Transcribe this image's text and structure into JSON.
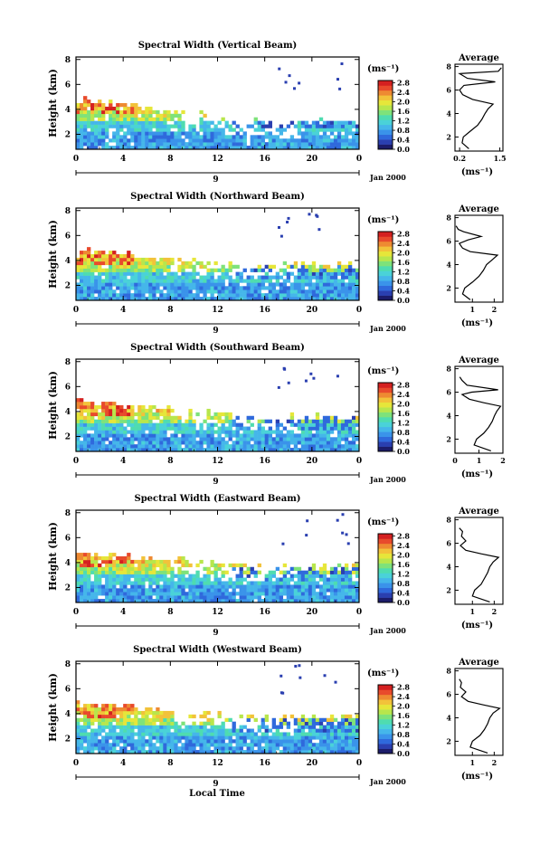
{
  "x_axis_label": "Local Time",
  "date_label": "Jan 2000",
  "day_marker": "9",
  "colorbar_unit": "(ms⁻¹)",
  "average_unit": "(ms⁻¹)",
  "average_title": "Average",
  "colormap": [
    "#1c1c6a",
    "#2a3fb0",
    "#2f69dc",
    "#3a93ea",
    "#45b6ea",
    "#4ad2d8",
    "#4fdcb0",
    "#7ee27a",
    "#b8e64c",
    "#e6e63a",
    "#f2c23a",
    "#ee8a32",
    "#e84a2c",
    "#d42020"
  ],
  "chart_data": [
    {
      "type": "heatmap",
      "title": "Spectral Width (Vertical Beam)",
      "xlabel": "",
      "ylabel": "Height (km)",
      "x_ticks": [
        "0",
        "4",
        "8",
        "12",
        "16",
        "20",
        "0"
      ],
      "y_ticks": [
        "2",
        "4",
        "6",
        "8"
      ],
      "xlim": [
        0,
        24
      ],
      "ylim": [
        0.8,
        8.2
      ],
      "colorbar": {
        "ticks": [
          "0.0",
          "0.4",
          "0.8",
          "1.2",
          "1.6",
          "2.0",
          "2.4",
          "2.8"
        ],
        "range": [
          0,
          2.9
        ]
      },
      "average": {
        "x_ticks": [
          "0.2",
          "1.5"
        ],
        "xlim": [
          0.05,
          1.6
        ],
        "y_ticks": [
          "2",
          "4",
          "6",
          "8"
        ],
        "profile": [
          [
            0.5,
            1.0
          ],
          [
            0.28,
            1.5
          ],
          [
            0.32,
            2.0
          ],
          [
            0.55,
            2.5
          ],
          [
            0.78,
            3.0
          ],
          [
            0.92,
            3.5
          ],
          [
            1.02,
            4.0
          ],
          [
            1.12,
            4.4
          ],
          [
            1.28,
            4.8
          ],
          [
            0.62,
            5.2
          ],
          [
            0.3,
            5.6
          ],
          [
            0.2,
            6.0
          ],
          [
            0.34,
            6.4
          ],
          [
            1.35,
            6.7
          ],
          [
            0.45,
            7.0
          ],
          [
            0.2,
            7.4
          ],
          [
            1.45,
            7.6
          ],
          [
            1.55,
            7.9
          ]
        ]
      },
      "gen": {
        "seed": 11,
        "top_start": 4.8,
        "top_end": 3.0,
        "gap": 6
      }
    },
    {
      "type": "heatmap",
      "title": "Spectral Width (Northward Beam)",
      "xlabel": "",
      "ylabel": "Height (km)",
      "x_ticks": [
        "0",
        "4",
        "8",
        "12",
        "16",
        "20",
        "0"
      ],
      "y_ticks": [
        "2",
        "4",
        "6",
        "8"
      ],
      "xlim": [
        0,
        24
      ],
      "ylim": [
        0.8,
        8.2
      ],
      "colorbar": {
        "ticks": [
          "0.0",
          "0.4",
          "0.8",
          "1.2",
          "1.6",
          "2.0",
          "2.4",
          "2.8"
        ],
        "range": [
          0,
          2.9
        ]
      },
      "average": {
        "x_ticks": [
          "1",
          "2"
        ],
        "xlim": [
          0.2,
          2.4
        ],
        "y_ticks": [
          "2",
          "4",
          "6",
          "8"
        ],
        "profile": [
          [
            0.9,
            1.0
          ],
          [
            0.55,
            1.5
          ],
          [
            0.65,
            2.0
          ],
          [
            1.0,
            2.5
          ],
          [
            1.3,
            3.0
          ],
          [
            1.5,
            3.5
          ],
          [
            1.65,
            4.0
          ],
          [
            1.9,
            4.4
          ],
          [
            2.15,
            4.8
          ],
          [
            0.9,
            5.1
          ],
          [
            0.55,
            5.4
          ],
          [
            0.4,
            5.8
          ],
          [
            0.8,
            6.1
          ],
          [
            1.4,
            6.4
          ],
          [
            0.6,
            6.8
          ],
          [
            0.35,
            7.0
          ],
          [
            0.25,
            7.3
          ]
        ]
      },
      "gen": {
        "seed": 23,
        "top_start": 4.8,
        "top_end": 3.6,
        "gap": 6
      }
    },
    {
      "type": "heatmap",
      "title": "Spectral Width (Southward Beam)",
      "xlabel": "",
      "ylabel": "Height (km)",
      "x_ticks": [
        "0",
        "4",
        "8",
        "12",
        "16",
        "20",
        "0"
      ],
      "y_ticks": [
        "2",
        "4",
        "6",
        "8"
      ],
      "xlim": [
        0,
        24
      ],
      "ylim": [
        0.8,
        8.2
      ],
      "colorbar": {
        "ticks": [
          "0.0",
          "0.4",
          "0.8",
          "1.2",
          "1.6",
          "2.0",
          "2.4",
          "2.8"
        ],
        "range": [
          0,
          2.9
        ]
      },
      "average": {
        "x_ticks": [
          "0",
          "1",
          "2"
        ],
        "xlim": [
          0,
          2.0
        ],
        "y_ticks": [
          "2",
          "4",
          "6",
          "8"
        ],
        "profile": [
          [
            1.5,
            1.0
          ],
          [
            0.8,
            1.5
          ],
          [
            0.9,
            2.0
          ],
          [
            1.2,
            2.5
          ],
          [
            1.4,
            3.0
          ],
          [
            1.55,
            3.5
          ],
          [
            1.65,
            4.0
          ],
          [
            1.75,
            4.4
          ],
          [
            1.9,
            4.8
          ],
          [
            1.2,
            5.1
          ],
          [
            0.6,
            5.4
          ],
          [
            0.3,
            5.8
          ],
          [
            0.7,
            6.0
          ],
          [
            1.8,
            6.2
          ],
          [
            0.5,
            6.6
          ],
          [
            0.3,
            7.0
          ],
          [
            0.2,
            7.3
          ]
        ]
      },
      "gen": {
        "seed": 37,
        "top_start": 4.9,
        "top_end": 3.6,
        "gap": 5
      }
    },
    {
      "type": "heatmap",
      "title": "Spectral Width (Eastward Beam)",
      "xlabel": "",
      "ylabel": "Height (km)",
      "x_ticks": [
        "0",
        "4",
        "8",
        "12",
        "16",
        "20",
        "0"
      ],
      "y_ticks": [
        "2",
        "4",
        "6",
        "8"
      ],
      "xlim": [
        0,
        24
      ],
      "ylim": [
        0.8,
        8.2
      ],
      "colorbar": {
        "ticks": [
          "0.0",
          "0.4",
          "0.8",
          "1.2",
          "1.6",
          "2.0",
          "2.4",
          "2.8"
        ],
        "range": [
          0,
          2.9
        ]
      },
      "average": {
        "x_ticks": [
          "1",
          "2"
        ],
        "xlim": [
          0.2,
          2.4
        ],
        "y_ticks": [
          "2",
          "4",
          "6",
          "8"
        ],
        "profile": [
          [
            1.8,
            1.0
          ],
          [
            1.0,
            1.5
          ],
          [
            1.1,
            2.0
          ],
          [
            1.4,
            2.5
          ],
          [
            1.55,
            3.0
          ],
          [
            1.7,
            3.5
          ],
          [
            1.8,
            4.0
          ],
          [
            1.95,
            4.4
          ],
          [
            2.2,
            4.8
          ],
          [
            1.4,
            5.1
          ],
          [
            0.7,
            5.4
          ],
          [
            0.45,
            5.8
          ],
          [
            0.7,
            6.2
          ],
          [
            0.5,
            6.6
          ],
          [
            0.55,
            7.0
          ],
          [
            0.4,
            7.3
          ]
        ]
      },
      "gen": {
        "seed": 51,
        "top_start": 4.8,
        "top_end": 3.7,
        "gap": 6
      }
    },
    {
      "type": "heatmap",
      "title": "Spectral Width (Westward Beam)",
      "xlabel": "",
      "ylabel": "Height (km)",
      "x_ticks": [
        "0",
        "4",
        "8",
        "12",
        "16",
        "20",
        "0"
      ],
      "y_ticks": [
        "2",
        "4",
        "6",
        "8"
      ],
      "xlim": [
        0,
        24
      ],
      "ylim": [
        0.8,
        8.2
      ],
      "colorbar": {
        "ticks": [
          "0.0",
          "0.4",
          "0.8",
          "1.2",
          "1.6",
          "2.0",
          "2.4",
          "2.8"
        ],
        "range": [
          0,
          2.9
        ]
      },
      "average": {
        "x_ticks": [
          "1",
          "2"
        ],
        "xlim": [
          0.2,
          2.4
        ],
        "y_ticks": [
          "2",
          "4",
          "6",
          "8"
        ],
        "profile": [
          [
            1.7,
            1.0
          ],
          [
            0.9,
            1.5
          ],
          [
            1.0,
            2.0
          ],
          [
            1.35,
            2.5
          ],
          [
            1.55,
            3.0
          ],
          [
            1.7,
            3.5
          ],
          [
            1.8,
            4.0
          ],
          [
            1.95,
            4.4
          ],
          [
            2.25,
            4.8
          ],
          [
            1.5,
            5.1
          ],
          [
            0.8,
            5.4
          ],
          [
            0.5,
            5.8
          ],
          [
            0.7,
            6.2
          ],
          [
            0.45,
            6.6
          ],
          [
            0.5,
            7.0
          ],
          [
            0.4,
            7.3
          ]
        ]
      },
      "gen": {
        "seed": 67,
        "top_start": 4.9,
        "top_end": 3.7,
        "gap": 6
      }
    }
  ]
}
